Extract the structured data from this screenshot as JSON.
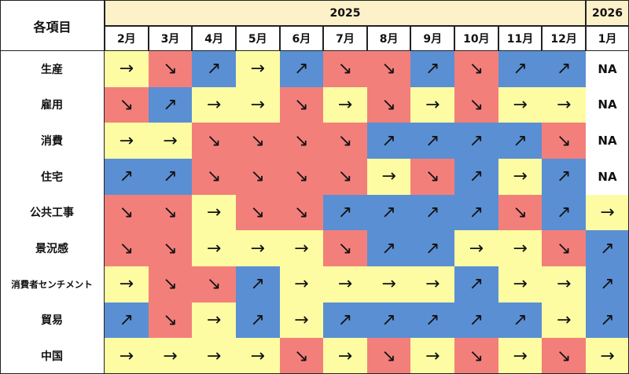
{
  "table": {
    "corner": "各項目",
    "years": [
      {
        "label": "2025",
        "span": 11
      },
      {
        "label": "2026",
        "span": 1
      }
    ],
    "months": [
      "2月",
      "3月",
      "4月",
      "5月",
      "6月",
      "7月",
      "8月",
      "9月",
      "10月",
      "11月",
      "12月",
      "1月"
    ],
    "colors": {
      "↗": "#5a8fd3",
      "↘": "#f37f7b",
      "→": "#fdfca2",
      "NA": "#ffffff"
    },
    "header_color": "#fdf1c9",
    "rows": [
      {
        "label": "生産",
        "cells": [
          "→",
          "↘",
          "↗",
          "→",
          "↗",
          "↘",
          "↘",
          "↗",
          "↘",
          "↗",
          "↗",
          "NA"
        ]
      },
      {
        "label": "雇用",
        "cells": [
          "↘",
          "↗",
          "→",
          "→",
          "↘",
          "→",
          "↘",
          "→",
          "↘",
          "→",
          "→",
          "NA"
        ]
      },
      {
        "label": "消費",
        "cells": [
          "→",
          "→",
          "↘",
          "↘",
          "↘",
          "↘",
          "↗",
          "↗",
          "↗",
          "↗",
          "↘",
          "NA"
        ]
      },
      {
        "label": "住宅",
        "cells": [
          "↗",
          "↗",
          "↘",
          "↘",
          "↘",
          "↘",
          "→",
          "↘",
          "↗",
          "→",
          "↗",
          "NA"
        ]
      },
      {
        "label": "公共工事",
        "cells": [
          "↘",
          "↘",
          "→",
          "↘",
          "↘",
          "↗",
          "↗",
          "↗",
          "↗",
          "↘",
          "↗",
          "→"
        ]
      },
      {
        "label": "景況感",
        "cells": [
          "↘",
          "↘",
          "→",
          "→",
          "→",
          "↘",
          "↗",
          "↗",
          "→",
          "→",
          "↘",
          "↗"
        ]
      },
      {
        "label": "消費者センチメント",
        "cells": [
          "→",
          "↘",
          "↘",
          "↗",
          "→",
          "→",
          "→",
          "→",
          "↗",
          "→",
          "→",
          "↗"
        ]
      },
      {
        "label": "貿易",
        "cells": [
          "↗",
          "↘",
          "→",
          "↗",
          "→",
          "↗",
          "↗",
          "↗",
          "↗",
          "↗",
          "→",
          "↗"
        ]
      },
      {
        "label": "中国",
        "cells": [
          "→",
          "→",
          "→",
          "→",
          "↘",
          "→",
          "↘",
          "→",
          "↘",
          "→",
          "↘",
          "→"
        ]
      }
    ]
  }
}
